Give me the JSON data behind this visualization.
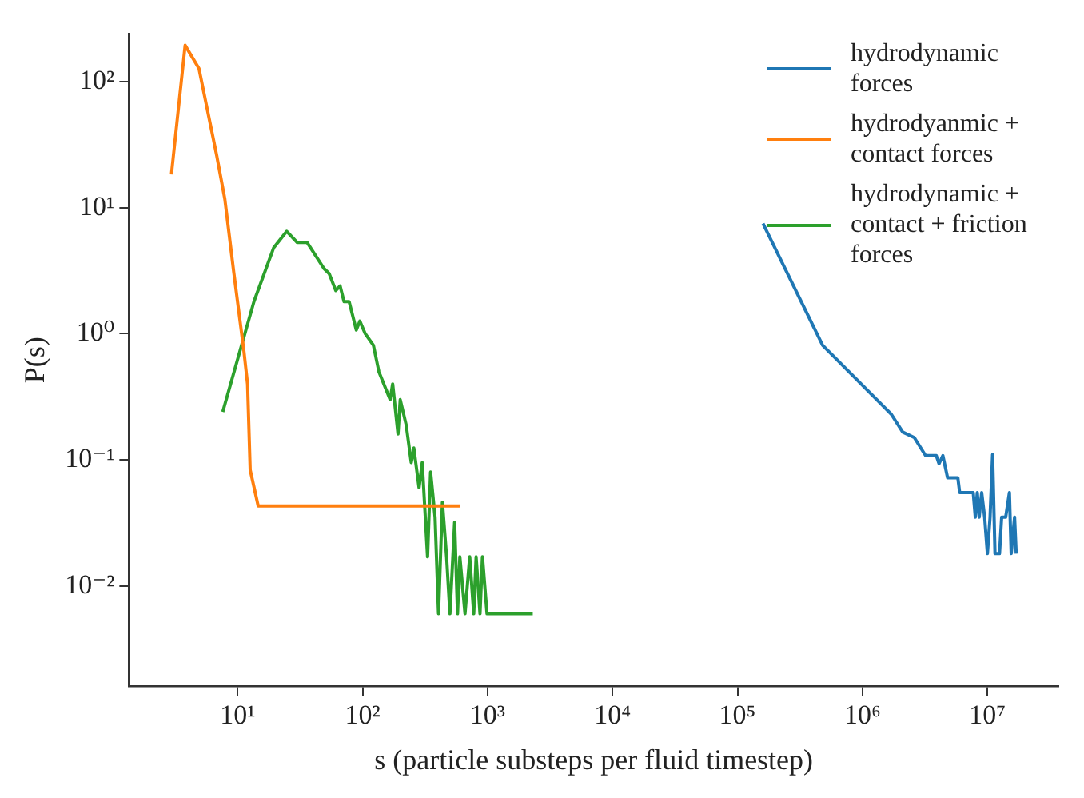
{
  "chart_data": {
    "type": "line",
    "xlabel": "s (particle substeps per fluid timestep)",
    "ylabel": "P(s)",
    "log": "xy",
    "legend": "top right",
    "grid": false,
    "marker": "none",
    "line_style": "solid",
    "xlim": [
      1.35,
      37000000
    ],
    "ylim": [
      0.0016,
      240
    ],
    "xticks": [
      {
        "value": 10,
        "label": "10¹"
      },
      {
        "value": 100,
        "label": "10²"
      },
      {
        "value": 1000,
        "label": "10³"
      },
      {
        "value": 10000,
        "label": "10⁴"
      },
      {
        "value": 100000,
        "label": "10⁵"
      },
      {
        "value": 1000000,
        "label": "10⁶"
      },
      {
        "value": 10000000,
        "label": "10⁷"
      }
    ],
    "yticks": [
      {
        "value": 0.01,
        "label": "10⁻²"
      },
      {
        "value": 0.1,
        "label": "10⁻¹"
      },
      {
        "value": 1,
        "label": "10⁰"
      },
      {
        "value": 10,
        "label": "10¹"
      },
      {
        "value": 100,
        "label": "10²"
      }
    ],
    "series": [
      {
        "name": "hydrodynamic forces",
        "color": "#1f77b4",
        "x": [
          160000,
          480000,
          1700000,
          2100000,
          2600000,
          3200000,
          3900000,
          4100000,
          4400000,
          4800000,
          5800000,
          6000000,
          7700000,
          8000000,
          8300000,
          8600000,
          9000000,
          9500000,
          10000000,
          10500000,
          11000000,
          11500000,
          12500000,
          13000000,
          14000000,
          15000000,
          15500000,
          16500000,
          17000000
        ],
        "values": [
          7.5,
          0.81,
          0.23,
          0.166,
          0.15,
          0.108,
          0.108,
          0.093,
          0.108,
          0.072,
          0.072,
          0.055,
          0.055,
          0.035,
          0.055,
          0.035,
          0.055,
          0.035,
          0.018,
          0.035,
          0.11,
          0.018,
          0.018,
          0.035,
          0.035,
          0.055,
          0.018,
          0.035,
          0.018
        ]
      },
      {
        "name": "hydrodyanmic + contact forces",
        "color": "#ff7f0e",
        "x": [
          2.95,
          3.8,
          4.9,
          6.8,
          7.9,
          9.3,
          11.2,
          12,
          12.6,
          14.6,
          600
        ],
        "values": [
          18.4,
          195,
          128,
          26,
          11.7,
          3.1,
          0.74,
          0.4,
          0.083,
          0.043,
          0.043
        ]
      },
      {
        "name": "hydrodynamic + contact + friction forces",
        "color": "#2ca02c",
        "x": [
          7.6,
          13.5,
          19.4,
          24.7,
          30,
          36,
          49,
          54,
          61,
          66,
          71,
          78,
          89,
          95,
          105,
          122,
          135,
          166,
          174,
          192,
          200,
          223,
          245,
          257,
          283,
          300,
          331,
          350,
          380,
          405,
          435,
          470,
          500,
          545,
          575,
          600,
          660,
          720,
          775,
          810,
          870,
          910,
          990,
          2300
        ],
        "values": [
          0.24,
          1.8,
          4.8,
          6.5,
          5.3,
          5.3,
          3.3,
          3.0,
          2.2,
          2.4,
          1.8,
          1.8,
          1.07,
          1.26,
          1.0,
          0.81,
          0.5,
          0.3,
          0.4,
          0.16,
          0.3,
          0.19,
          0.095,
          0.124,
          0.06,
          0.095,
          0.017,
          0.08,
          0.035,
          0.006,
          0.046,
          0.017,
          0.006,
          0.032,
          0.006,
          0.017,
          0.006,
          0.017,
          0.006,
          0.017,
          0.006,
          0.017,
          0.006,
          0.006
        ]
      }
    ]
  }
}
